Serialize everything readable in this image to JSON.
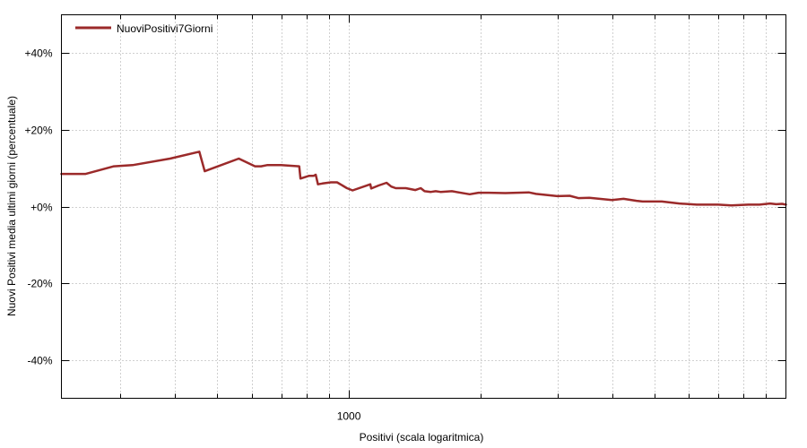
{
  "chart_data": {
    "type": "line",
    "xlabel": "Positivi (scala logaritmica)",
    "ylabel": "Nuovi Positivi media ultimi giorni (percentuale)",
    "xscale": "log",
    "xlim": [
      220,
      10000
    ],
    "ylim": [
      -50,
      50
    ],
    "x_ticks": [
      {
        "value": 1000,
        "label": "1000"
      }
    ],
    "y_ticks": [
      {
        "value": 40,
        "label": "+40%"
      },
      {
        "value": 20,
        "label": "+20%"
      },
      {
        "value": 0,
        "label": "+0%"
      },
      {
        "value": -20,
        "label": "-20%"
      },
      {
        "value": -40,
        "label": "-40%"
      }
    ],
    "grid": true,
    "legend_position": "top-left",
    "series": [
      {
        "name": "NuoviPositivi7Giorni",
        "color": "#9b2a2a",
        "x": [
          220,
          250,
          290,
          320,
          390,
          455,
          468,
          560,
          610,
          630,
          650,
          700,
          770,
          775,
          810,
          830,
          840,
          850,
          870,
          910,
          940,
          990,
          1020,
          1120,
          1125,
          1170,
          1220,
          1250,
          1280,
          1350,
          1420,
          1460,
          1490,
          1540,
          1580,
          1620,
          1720,
          1890,
          1980,
          2090,
          2280,
          2580,
          2680,
          3000,
          3200,
          3350,
          3550,
          4000,
          4250,
          4550,
          4700,
          5200,
          5700,
          6250,
          6750,
          7000,
          7500,
          8200,
          8700,
          9200,
          9500,
          9800,
          10000
        ],
        "y": [
          8.5,
          8.5,
          10.5,
          10.8,
          12.5,
          14.3,
          9.2,
          12.5,
          10.5,
          10.5,
          10.8,
          10.8,
          10.5,
          7.3,
          8.0,
          8.0,
          8.3,
          5.8,
          6.0,
          6.3,
          6.3,
          4.8,
          4.2,
          5.8,
          4.7,
          5.5,
          6.2,
          5.2,
          4.8,
          4.8,
          4.3,
          4.8,
          4.0,
          3.8,
          4.0,
          3.8,
          4.0,
          3.2,
          3.6,
          3.6,
          3.5,
          3.7,
          3.3,
          2.7,
          2.8,
          2.2,
          2.3,
          1.7,
          2.0,
          1.5,
          1.3,
          1.3,
          0.8,
          0.5,
          0.5,
          0.5,
          0.3,
          0.5,
          0.5,
          0.8,
          0.6,
          0.7,
          0.5
        ]
      }
    ]
  }
}
